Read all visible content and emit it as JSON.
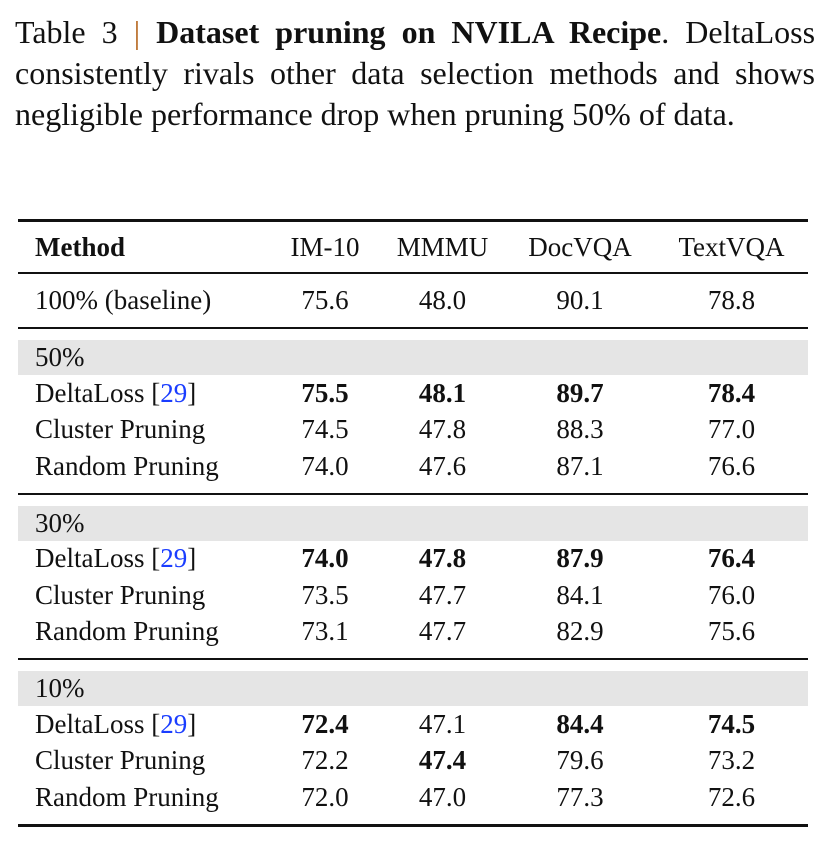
{
  "caption": {
    "label": "Table 3",
    "separator": "|",
    "title": "Dataset pruning on NVILA Recipe",
    "text": ". DeltaLoss consistently rivals other data selection methods and shows negligible performance drop when pruning 50% of data."
  },
  "table": {
    "headers": [
      "Method",
      "IM-10",
      "MMMU",
      "DocVQA",
      "TextVQA"
    ],
    "baseline": {
      "method": "100% (baseline)",
      "values": [
        "75.6",
        "48.0",
        "90.1",
        "78.8"
      ]
    },
    "groups": [
      {
        "label": "50%",
        "rows": [
          {
            "method": "DeltaLoss",
            "ref": "29",
            "values": [
              "75.5",
              "48.1",
              "89.7",
              "78.4"
            ],
            "bold": [
              true,
              true,
              true,
              true
            ]
          },
          {
            "method": "Cluster Pruning",
            "values": [
              "74.5",
              "47.8",
              "88.3",
              "77.0"
            ],
            "bold": [
              false,
              false,
              false,
              false
            ]
          },
          {
            "method": "Random Pruning",
            "values": [
              "74.0",
              "47.6",
              "87.1",
              "76.6"
            ],
            "bold": [
              false,
              false,
              false,
              false
            ]
          }
        ]
      },
      {
        "label": "30%",
        "rows": [
          {
            "method": "DeltaLoss",
            "ref": "29",
            "values": [
              "74.0",
              "47.8",
              "87.9",
              "76.4"
            ],
            "bold": [
              true,
              true,
              true,
              true
            ]
          },
          {
            "method": "Cluster Pruning",
            "values": [
              "73.5",
              "47.7",
              "84.1",
              "76.0"
            ],
            "bold": [
              false,
              false,
              false,
              false
            ]
          },
          {
            "method": "Random Pruning",
            "values": [
              "73.1",
              "47.7",
              "82.9",
              "75.6"
            ],
            "bold": [
              false,
              false,
              false,
              false
            ]
          }
        ]
      },
      {
        "label": "10%",
        "rows": [
          {
            "method": "DeltaLoss",
            "ref": "29",
            "values": [
              "72.4",
              "47.1",
              "84.4",
              "74.5"
            ],
            "bold": [
              true,
              false,
              true,
              true
            ]
          },
          {
            "method": "Cluster Pruning",
            "values": [
              "72.2",
              "47.4",
              "79.6",
              "73.2"
            ],
            "bold": [
              false,
              true,
              false,
              false
            ]
          },
          {
            "method": "Random Pruning",
            "values": [
              "72.0",
              "47.0",
              "77.3",
              "72.6"
            ],
            "bold": [
              false,
              false,
              false,
              false
            ]
          }
        ]
      }
    ]
  }
}
